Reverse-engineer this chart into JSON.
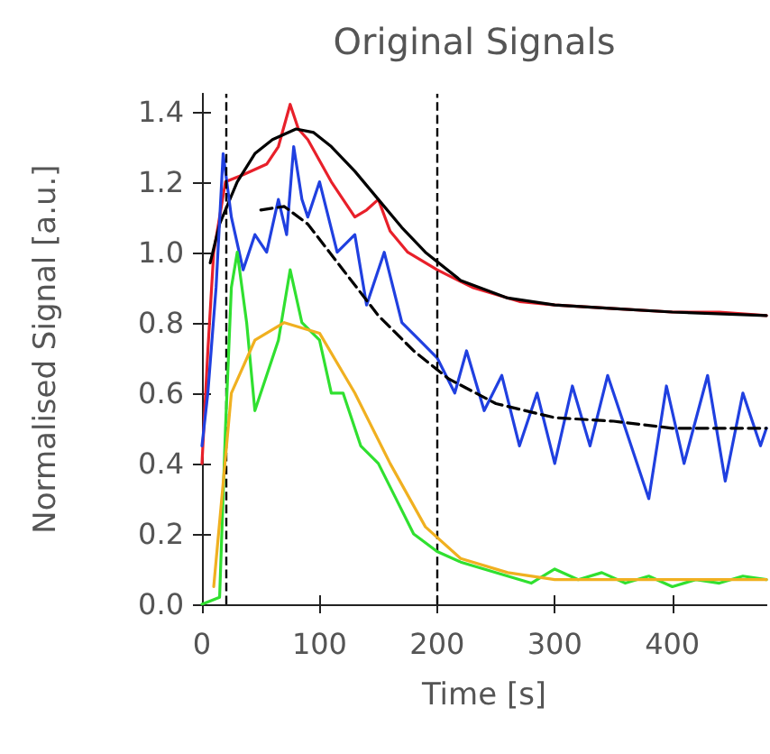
{
  "chart_data": {
    "type": "line",
    "title": "Original Signals",
    "xlabel": "Time [s]",
    "ylabel": "Normalised Signal [a.u.]",
    "xlim": [
      0,
      480
    ],
    "ylim": [
      0,
      1.45
    ],
    "xticks": [
      0,
      100,
      200,
      300,
      400
    ],
    "yticks": [
      {
        "value": 0,
        "label": "0.0"
      },
      {
        "value": 0.2,
        "label": "0.2"
      },
      {
        "value": 0.4,
        "label": "0.4"
      },
      {
        "value": 0.6,
        "label": "0.6"
      },
      {
        "value": 0.8,
        "label": "0.8"
      },
      {
        "value": 1,
        "label": "1.0"
      },
      {
        "value": 1.2,
        "label": "1.2"
      },
      {
        "value": 1.4,
        "label": "1.4"
      }
    ],
    "grid": false,
    "marker": "none",
    "ref_lines": [
      {
        "axis": "x",
        "value": 20,
        "line_style": "dashed",
        "color": "#000000"
      },
      {
        "axis": "x",
        "value": 200,
        "line_style": "dashed",
        "color": "#000000"
      }
    ],
    "series": [
      {
        "color": "#e8202a",
        "line_style": "solid",
        "x": [
          0,
          5,
          10,
          20,
          35,
          55,
          65,
          75,
          82,
          90,
          110,
          130,
          140,
          150,
          160,
          175,
          200,
          230,
          270,
          300,
          350,
          400,
          440,
          480
        ],
        "values": [
          0.4,
          0.72,
          1.0,
          1.2,
          1.22,
          1.25,
          1.3,
          1.42,
          1.35,
          1.32,
          1.2,
          1.1,
          1.12,
          1.15,
          1.06,
          1.0,
          0.95,
          0.9,
          0.86,
          0.85,
          0.84,
          0.83,
          0.83,
          0.82
        ]
      },
      {
        "color": "#000000",
        "line_style": "solid",
        "x": [
          7,
          15,
          30,
          45,
          60,
          80,
          95,
          110,
          130,
          150,
          170,
          190,
          220,
          260,
          300,
          350,
          400,
          480
        ],
        "values": [
          0.97,
          1.08,
          1.2,
          1.28,
          1.32,
          1.35,
          1.34,
          1.3,
          1.23,
          1.15,
          1.07,
          1.0,
          0.92,
          0.87,
          0.85,
          0.84,
          0.83,
          0.82
        ]
      },
      {
        "color": "#2040e0",
        "line_style": "solid",
        "x": [
          0,
          5,
          12,
          18,
          25,
          35,
          45,
          55,
          65,
          72,
          78,
          85,
          90,
          100,
          115,
          130,
          140,
          155,
          170,
          185,
          200,
          215,
          225,
          240,
          255,
          270,
          285,
          300,
          315,
          330,
          345,
          360,
          380,
          395,
          410,
          430,
          445,
          460,
          475,
          480
        ],
        "values": [
          0.45,
          0.6,
          0.9,
          1.28,
          1.1,
          0.95,
          1.05,
          1.0,
          1.15,
          1.05,
          1.3,
          1.15,
          1.1,
          1.2,
          1.0,
          1.05,
          0.85,
          1.0,
          0.8,
          0.75,
          0.7,
          0.6,
          0.72,
          0.55,
          0.65,
          0.45,
          0.6,
          0.4,
          0.62,
          0.45,
          0.65,
          0.5,
          0.3,
          0.62,
          0.4,
          0.65,
          0.35,
          0.6,
          0.45,
          0.5
        ]
      },
      {
        "color": "#000000",
        "line_style": "dashed",
        "x": [
          50,
          70,
          90,
          120,
          150,
          180,
          210,
          250,
          300,
          350,
          400,
          480
        ],
        "values": [
          1.12,
          1.13,
          1.08,
          0.95,
          0.82,
          0.72,
          0.64,
          0.57,
          0.53,
          0.52,
          0.5,
          0.5
        ]
      },
      {
        "color": "#30e030",
        "line_style": "solid",
        "x": [
          0,
          15,
          20,
          25,
          30,
          38,
          45,
          55,
          65,
          75,
          85,
          100,
          110,
          120,
          135,
          150,
          165,
          180,
          200,
          220,
          240,
          260,
          280,
          300,
          320,
          340,
          360,
          380,
          400,
          420,
          440,
          460,
          480
        ],
        "values": [
          0,
          0.02,
          0.5,
          0.9,
          1.0,
          0.8,
          0.55,
          0.65,
          0.75,
          0.95,
          0.8,
          0.75,
          0.6,
          0.6,
          0.45,
          0.4,
          0.3,
          0.2,
          0.15,
          0.12,
          0.1,
          0.08,
          0.06,
          0.1,
          0.07,
          0.09,
          0.06,
          0.08,
          0.05,
          0.07,
          0.06,
          0.08,
          0.07
        ]
      },
      {
        "color": "#f0b020",
        "line_style": "solid",
        "x": [
          10,
          25,
          45,
          70,
          100,
          130,
          160,
          190,
          220,
          260,
          300,
          400,
          480
        ],
        "values": [
          0.05,
          0.6,
          0.75,
          0.8,
          0.77,
          0.6,
          0.4,
          0.22,
          0.13,
          0.09,
          0.07,
          0.07,
          0.07
        ]
      }
    ]
  }
}
